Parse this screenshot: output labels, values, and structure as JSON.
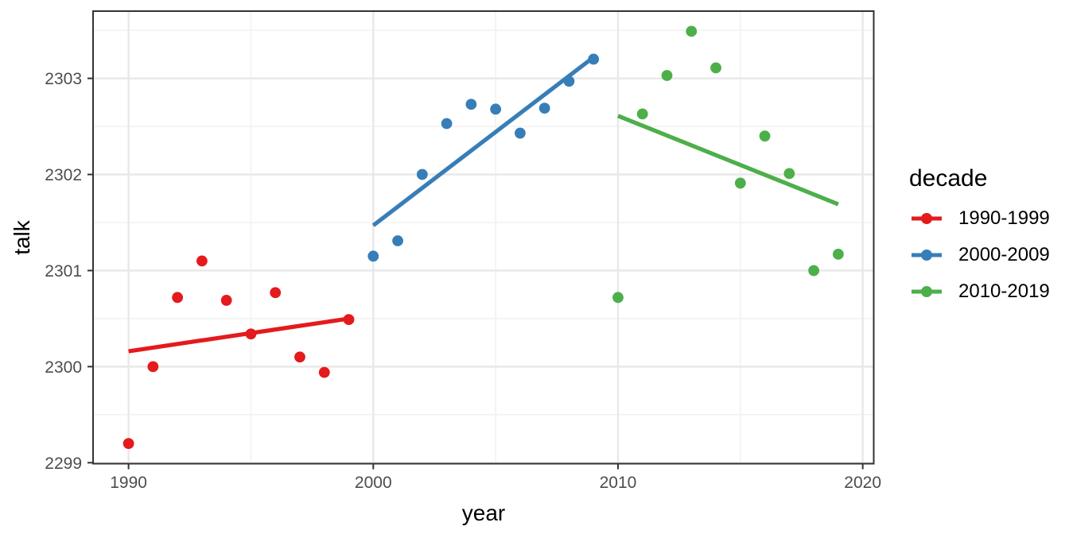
{
  "figure": {
    "background": "#FFFFFF",
    "panel_background": "#FFFFFF",
    "panel_border_color": "#333333",
    "grid_major_color": "#E8E8E8",
    "grid_minor_color": "#F2F2F2",
    "tick_mark_color": "#333333",
    "tick_label_color": "#4D4D4D",
    "title_text_color": "#000000"
  },
  "chart_data": {
    "type": "scatter",
    "title": "",
    "xlabel": "year",
    "ylabel": "talk",
    "xlim": [
      1988.55,
      2020.45
    ],
    "ylim": [
      2298.99,
      2303.7
    ],
    "x_ticks": [
      1990,
      2000,
      2010,
      2020
    ],
    "x_minor_ticks": [
      1995,
      2005,
      2015
    ],
    "y_ticks": [
      2299,
      2300,
      2301,
      2302,
      2303
    ],
    "y_minor_ticks": [
      2299.5,
      2300.5,
      2301.5,
      2302.5,
      2303.5
    ],
    "grid": "major-and-minor",
    "legend": {
      "title": "decade",
      "position": "right"
    },
    "series": [
      {
        "name": "1990-1999",
        "color": "#E41A1C",
        "x": [
          1990,
          1991,
          1992,
          1993,
          1994,
          1995,
          1996,
          1997,
          1998,
          1999
        ],
        "y": [
          2299.2,
          2300.0,
          2300.72,
          2301.1,
          2300.69,
          2300.34,
          2300.77,
          2300.1,
          2299.94,
          2300.49
        ],
        "trend": {
          "x": [
            1990,
            1999
          ],
          "y": [
            2300.16,
            2300.5
          ]
        }
      },
      {
        "name": "2000-2009",
        "color": "#377EB8",
        "x": [
          2000,
          2001,
          2002,
          2003,
          2004,
          2005,
          2006,
          2007,
          2008,
          2009
        ],
        "y": [
          2301.15,
          2301.31,
          2302.0,
          2302.53,
          2302.73,
          2302.68,
          2302.43,
          2302.69,
          2302.97,
          2303.2
        ],
        "trend": {
          "x": [
            2000,
            2009
          ],
          "y": [
            2301.47,
            2303.22
          ]
        }
      },
      {
        "name": "2010-2019",
        "color": "#4DAF4A",
        "x": [
          2010,
          2011,
          2012,
          2013,
          2014,
          2015,
          2016,
          2017,
          2018,
          2019
        ],
        "y": [
          2300.72,
          2302.63,
          2303.03,
          2303.49,
          2303.11,
          2301.91,
          2302.4,
          2302.01,
          2301.0,
          2301.17
        ],
        "trend": {
          "x": [
            2010,
            2019
          ],
          "y": [
            2302.61,
            2301.69
          ]
        }
      }
    ]
  }
}
